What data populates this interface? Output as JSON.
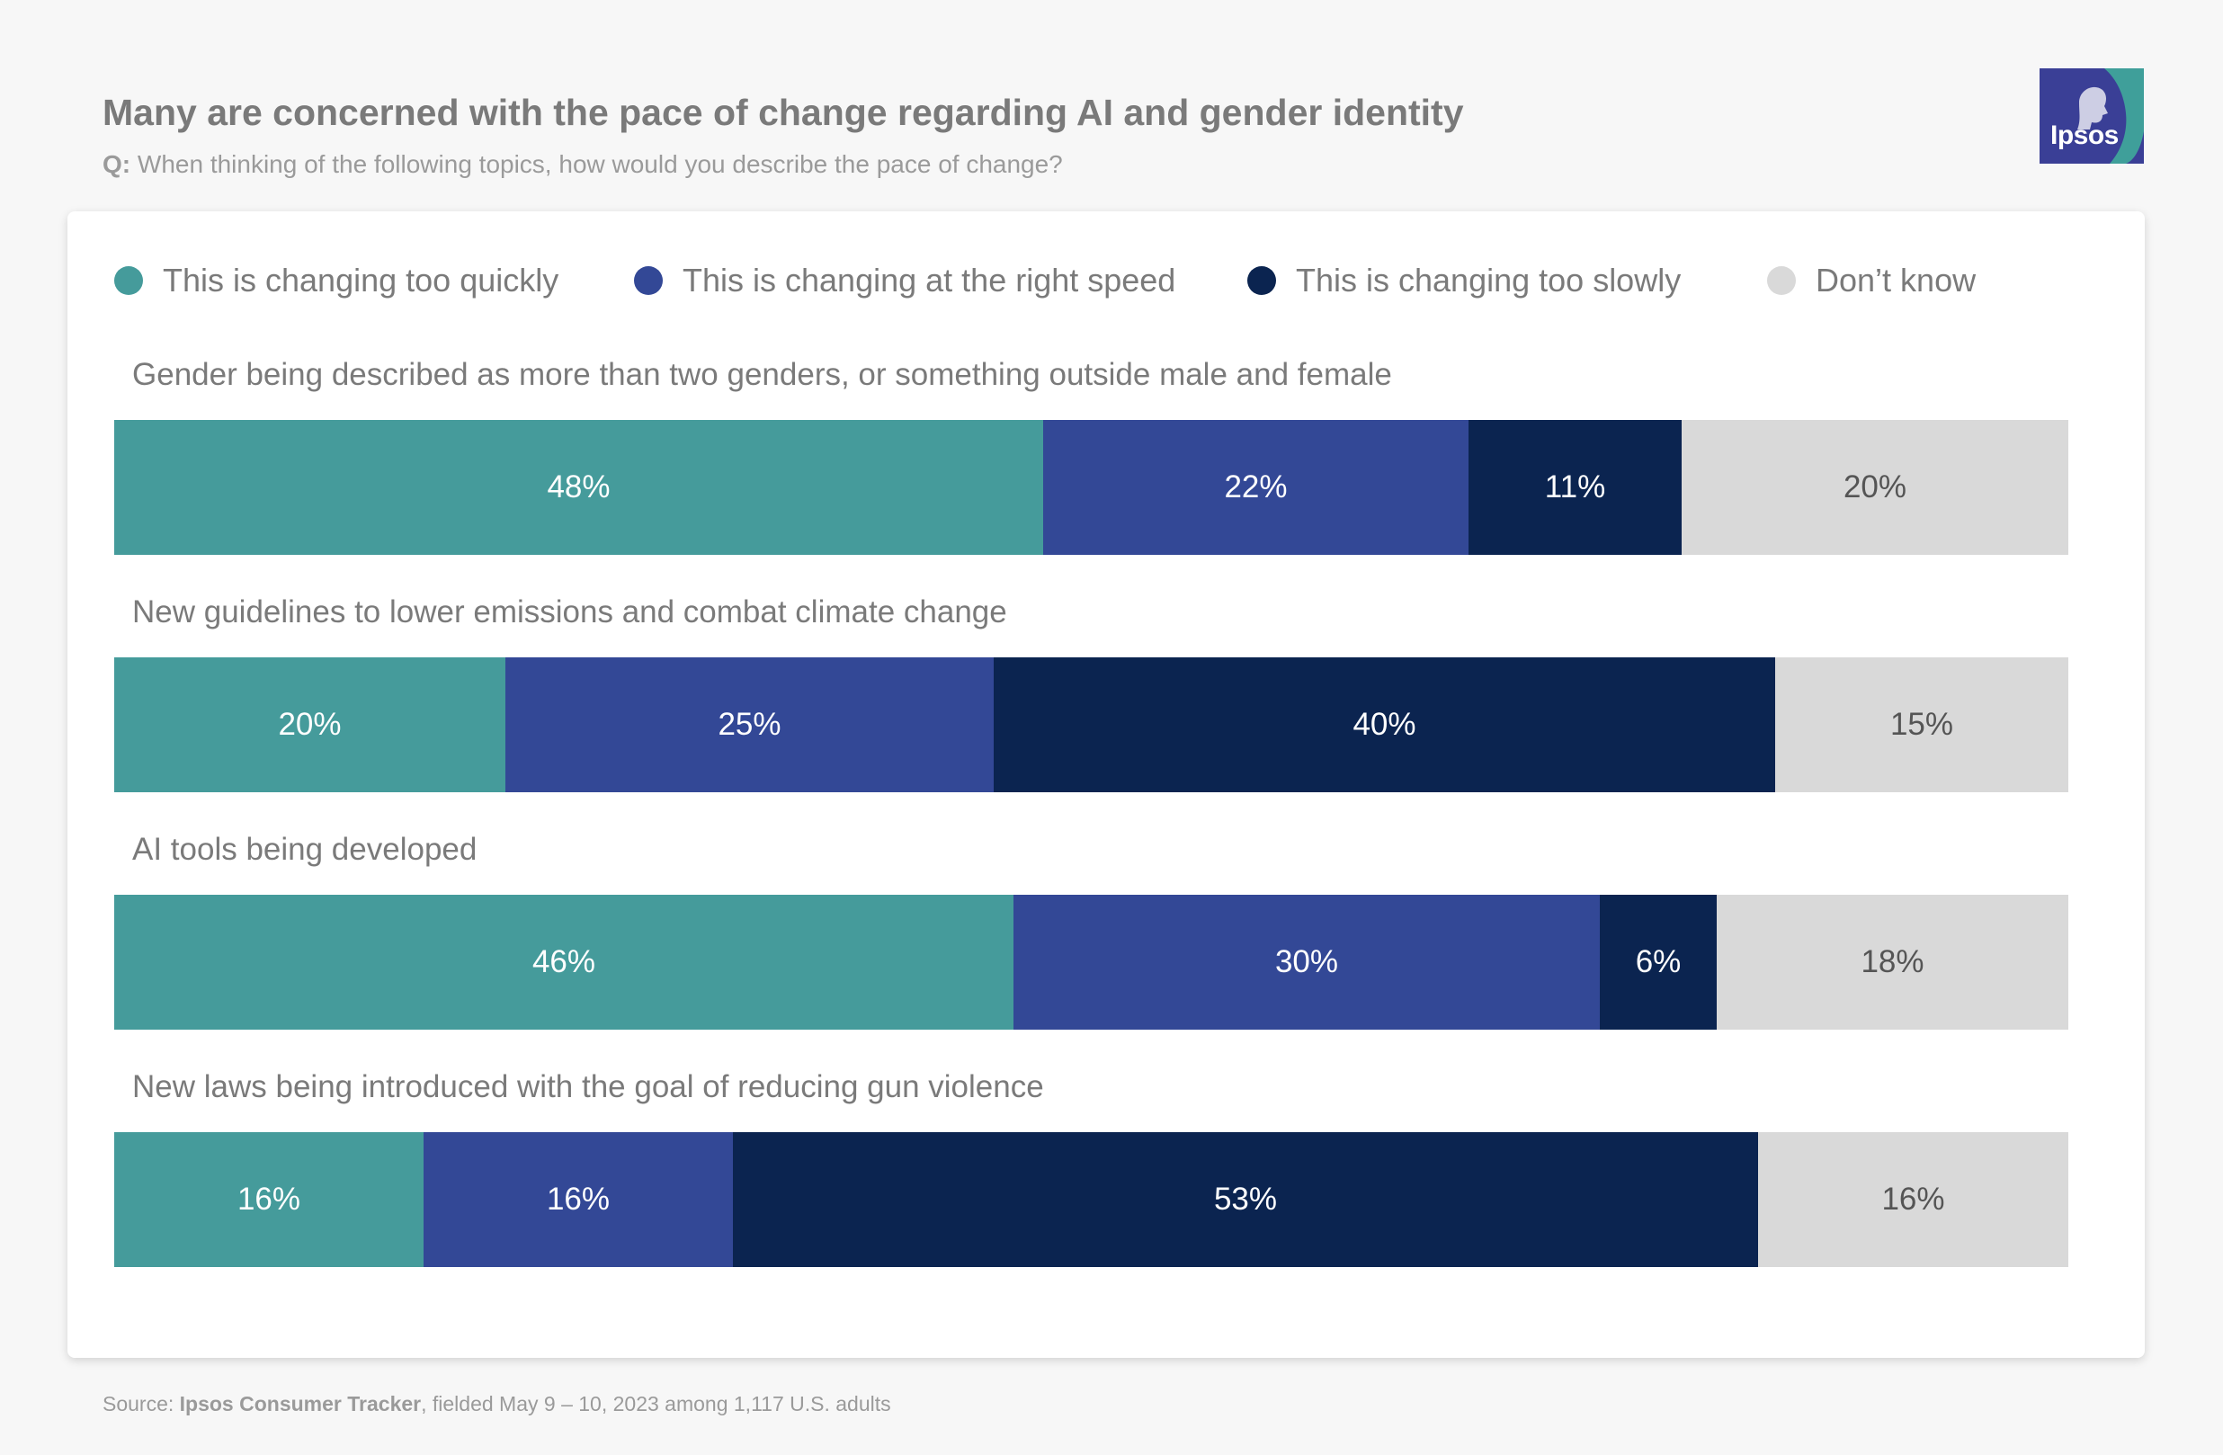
{
  "header": {
    "title": "Many are concerned with the pace of change regarding AI and gender identity",
    "question_prefix": "Q:",
    "question": " When thinking of the following topics, how would you describe the pace of change?",
    "logo_text": "Ipsos"
  },
  "colors": {
    "too_quickly": "#459b9b",
    "right_speed": "#334896",
    "too_slowly": "#0b2450",
    "dont_know": "#d9d9d9",
    "logo_bg": "#3a3f96",
    "logo_accent": "#3f9f9a"
  },
  "chart_data": {
    "type": "bar",
    "orientation": "horizontal",
    "stacked": true,
    "legend_position": "top",
    "grid": false,
    "categories": [
      "Gender being described as more than two genders, or something outside male and female",
      "New guidelines to lower emissions and combat climate change",
      "AI tools being developed",
      "New laws being introduced with the goal of reducing gun violence"
    ],
    "series": [
      {
        "name": "This is changing too quickly",
        "color": "#459b9b",
        "text_color": "#ffffff",
        "values": [
          48,
          20,
          46,
          16
        ]
      },
      {
        "name": "This is changing at the right speed",
        "color": "#334896",
        "text_color": "#ffffff",
        "values": [
          22,
          25,
          30,
          16
        ]
      },
      {
        "name": "This is changing too slowly",
        "color": "#0b2450",
        "text_color": "#ffffff",
        "values": [
          11,
          40,
          6,
          53
        ]
      },
      {
        "name": "Don’t know",
        "color": "#d9d9d9",
        "text_color": "#555555",
        "values": [
          20,
          15,
          18,
          16
        ]
      }
    ],
    "value_suffix": "%"
  },
  "footer": {
    "source_prefix": "Source: ",
    "source_name": "Ipsos Consumer Tracker",
    "source_rest": ", fielded May 9 – 10, 2023 among 1,117 U.S. adults"
  }
}
